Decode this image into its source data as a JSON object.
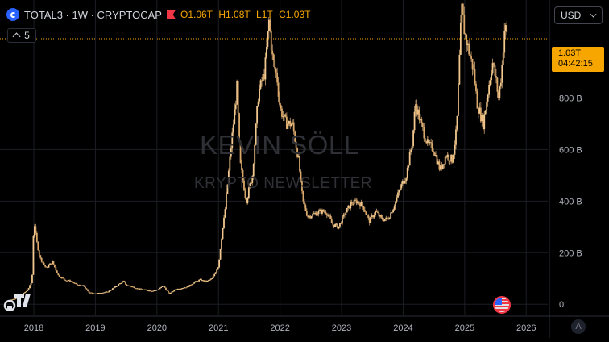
{
  "header": {
    "symbol": "TOTAL3 · 1W · CRYPTOCAP",
    "ohlc": [
      {
        "key": "O",
        "value": "1.06T"
      },
      {
        "key": "H",
        "value": "1.08T"
      },
      {
        "key": "L",
        "value": "1T"
      },
      {
        "key": "C",
        "value": "1.03T"
      }
    ],
    "indicator_count": "5"
  },
  "currency": {
    "label": "USD"
  },
  "price_tag": {
    "value": "1.03T",
    "countdown": "04:42:15"
  },
  "axis_button": {
    "label": "A"
  },
  "watermark": {
    "title": "KEVIN SÖLL",
    "subtitle": "KRYPTO NEWSLETTER"
  },
  "colors": {
    "background": "#000000",
    "candle": "#f0c78e",
    "wick": "#c8a170",
    "accent": "#f7a600",
    "grid": "#1c1e24",
    "axis_text": "#b2b5be"
  },
  "icons": {
    "symbol": "cryptocap-logo-icon",
    "flag": "red-flag-icon",
    "collapse": "chevron-up-icon",
    "currency": "chevron-down-icon",
    "event": "us-flag-icon",
    "logo": "tradingview-logo-icon"
  },
  "chart_data": {
    "type": "candlestick",
    "title": "TOTAL3 · 1W · CRYPTOCAP",
    "xlabel": "",
    "ylabel": "",
    "x_ticks": [
      "2018",
      "2019",
      "2020",
      "2021",
      "2022",
      "2023",
      "2024",
      "2025",
      "2026"
    ],
    "y_ticks": [
      "0",
      "200 B",
      "400 B",
      "600 B",
      "800 B"
    ],
    "y_tick_values": [
      0,
      200,
      400,
      600,
      800
    ],
    "y_unit": "B",
    "ylim": [
      -40,
      1180
    ],
    "xlim": [
      2017.45,
      2026.35
    ],
    "last_price": 1030,
    "grid": true,
    "series": [
      {
        "values": [
          [
            2017.55,
            12
          ],
          [
            2017.7,
            22
          ],
          [
            2017.8,
            36
          ],
          [
            2017.9,
            55
          ],
          [
            2017.97,
            90
          ],
          [
            2018.0,
            330
          ],
          [
            2018.04,
            250
          ],
          [
            2018.1,
            180
          ],
          [
            2018.2,
            140
          ],
          [
            2018.3,
            165
          ],
          [
            2018.4,
            110
          ],
          [
            2018.5,
            95
          ],
          [
            2018.6,
            90
          ],
          [
            2018.7,
            75
          ],
          [
            2018.8,
            72
          ],
          [
            2018.9,
            45
          ],
          [
            2019.0,
            42
          ],
          [
            2019.2,
            48
          ],
          [
            2019.35,
            72
          ],
          [
            2019.45,
            90
          ],
          [
            2019.5,
            75
          ],
          [
            2019.7,
            60
          ],
          [
            2019.9,
            52
          ],
          [
            2020.0,
            55
          ],
          [
            2020.1,
            72
          ],
          [
            2020.2,
            40
          ],
          [
            2020.3,
            58
          ],
          [
            2020.5,
            68
          ],
          [
            2020.6,
            85
          ],
          [
            2020.7,
            95
          ],
          [
            2020.8,
            88
          ],
          [
            2020.9,
            100
          ],
          [
            2021.0,
            150
          ],
          [
            2021.05,
            260
          ],
          [
            2021.1,
            350
          ],
          [
            2021.2,
            600
          ],
          [
            2021.3,
            840
          ],
          [
            2021.35,
            550
          ],
          [
            2021.45,
            400
          ],
          [
            2021.55,
            500
          ],
          [
            2021.65,
            820
          ],
          [
            2021.75,
            900
          ],
          [
            2021.82,
            1100
          ],
          [
            2021.88,
            950
          ],
          [
            2021.95,
            880
          ],
          [
            2022.0,
            760
          ],
          [
            2022.1,
            700
          ],
          [
            2022.2,
            700
          ],
          [
            2022.3,
            560
          ],
          [
            2022.37,
            400
          ],
          [
            2022.45,
            340
          ],
          [
            2022.55,
            350
          ],
          [
            2022.65,
            360
          ],
          [
            2022.75,
            360
          ],
          [
            2022.85,
            310
          ],
          [
            2022.95,
            300
          ],
          [
            2023.05,
            350
          ],
          [
            2023.15,
            390
          ],
          [
            2023.25,
            400
          ],
          [
            2023.35,
            380
          ],
          [
            2023.45,
            320
          ],
          [
            2023.55,
            360
          ],
          [
            2023.65,
            330
          ],
          [
            2023.75,
            330
          ],
          [
            2023.85,
            380
          ],
          [
            2023.95,
            450
          ],
          [
            2024.05,
            500
          ],
          [
            2024.15,
            630
          ],
          [
            2024.2,
            780
          ],
          [
            2024.3,
            690
          ],
          [
            2024.4,
            620
          ],
          [
            2024.5,
            600
          ],
          [
            2024.6,
            520
          ],
          [
            2024.7,
            580
          ],
          [
            2024.8,
            560
          ],
          [
            2024.87,
            680
          ],
          [
            2024.92,
            980
          ],
          [
            2024.95,
            1150
          ],
          [
            2025.0,
            1050
          ],
          [
            2025.05,
            1000
          ],
          [
            2025.15,
            900
          ],
          [
            2025.2,
            780
          ],
          [
            2025.3,
            700
          ],
          [
            2025.4,
            860
          ],
          [
            2025.45,
            940
          ],
          [
            2025.5,
            880
          ],
          [
            2025.55,
            800
          ],
          [
            2025.6,
            900
          ],
          [
            2025.65,
            1080
          ],
          [
            2025.7,
            1030
          ]
        ]
      }
    ]
  }
}
